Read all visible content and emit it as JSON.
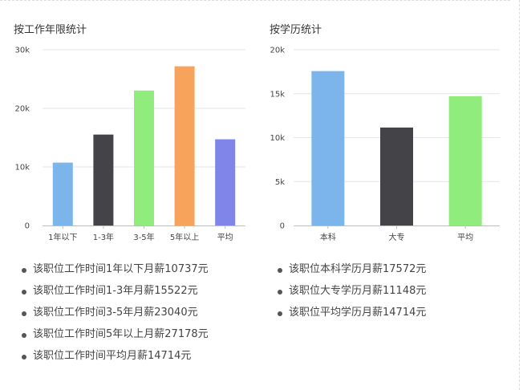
{
  "chart_data": [
    {
      "type": "bar",
      "title": "按工作年限统计",
      "categories": [
        "1年以下",
        "1-3年",
        "3-5年",
        "5年以上",
        "平均"
      ],
      "values": [
        10737,
        15522,
        23040,
        27178,
        14714
      ],
      "colors": [
        "#7cb5ec",
        "#434348",
        "#90ed7d",
        "#f7a35c",
        "#8085e9"
      ],
      "ylim": [
        0,
        30000
      ],
      "yticks": [
        0,
        10000,
        20000,
        30000
      ],
      "ytick_labels": [
        "0",
        "10k",
        "20k",
        "30k"
      ],
      "grid": true,
      "xlabel": "",
      "ylabel": ""
    },
    {
      "type": "bar",
      "title": "按学历统计",
      "categories": [
        "本科",
        "大专",
        "平均"
      ],
      "values": [
        17572,
        11148,
        14714
      ],
      "colors": [
        "#7cb5ec",
        "#434348",
        "#90ed7d"
      ],
      "ylim": [
        0,
        20000
      ],
      "yticks": [
        0,
        5000,
        10000,
        15000,
        20000
      ],
      "ytick_labels": [
        "0",
        "5k",
        "10k",
        "15k",
        "20k"
      ],
      "grid": true,
      "xlabel": "",
      "ylabel": ""
    }
  ],
  "summaries": {
    "experience": [
      "该职位工作时间1年以下月薪10737元",
      "该职位工作时间1-3年月薪15522元",
      "该职位工作时间3-5年月薪23040元",
      "该职位工作时间5年以上月薪27178元",
      "该职位工作时间平均月薪14714元"
    ],
    "education": [
      "该职位本科学历月薪17572元",
      "该职位大专学历月薪11148元",
      "该职位平均学历月薪14714元"
    ]
  }
}
